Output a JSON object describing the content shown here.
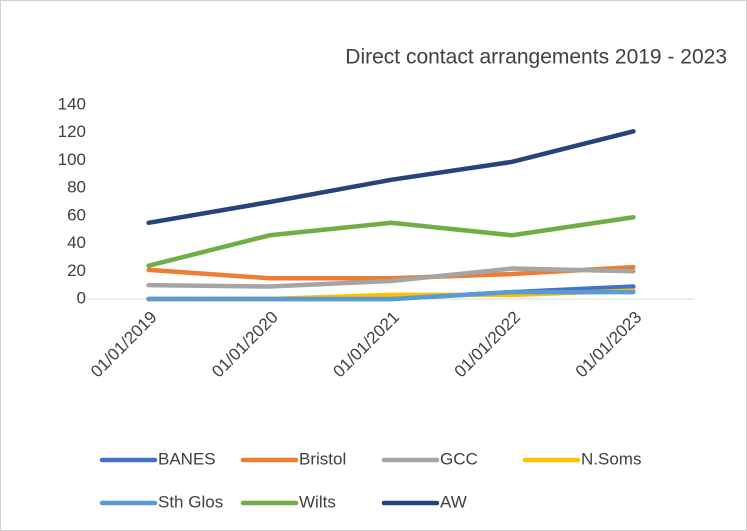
{
  "chart_data": {
    "type": "line",
    "title": "Direct contact arrangements 2019 - 2023",
    "categories": [
      "01/01/2019",
      "01/01/2020",
      "01/01/2021",
      "01/01/2022",
      "01/01/2023"
    ],
    "series": [
      {
        "name": "BANES",
        "color": "#4472c4",
        "values": [
          0,
          0,
          0,
          5,
          9
        ]
      },
      {
        "name": "Bristol",
        "color": "#ed7d31",
        "values": [
          21,
          15,
          15,
          18,
          23
        ]
      },
      {
        "name": "GCC",
        "color": "#a5a5a5",
        "values": [
          10,
          9,
          13,
          22,
          20
        ]
      },
      {
        "name": "N.Soms",
        "color": "#ffc000",
        "values": [
          0,
          0,
          3,
          3,
          6
        ]
      },
      {
        "name": "Sth Glos",
        "color": "#5b9bd5",
        "values": [
          0,
          0,
          0,
          5,
          5
        ]
      },
      {
        "name": "Wilts",
        "color": "#70ad47",
        "values": [
          24,
          46,
          55,
          46,
          59
        ]
      },
      {
        "name": "AW",
        "color": "#264478",
        "values": [
          55,
          70,
          86,
          99,
          121
        ]
      }
    ],
    "ylim": [
      0,
      140
    ],
    "yticks": [
      0,
      20,
      40,
      60,
      80,
      100,
      120,
      140
    ],
    "grid": false,
    "legend": "bottom"
  }
}
